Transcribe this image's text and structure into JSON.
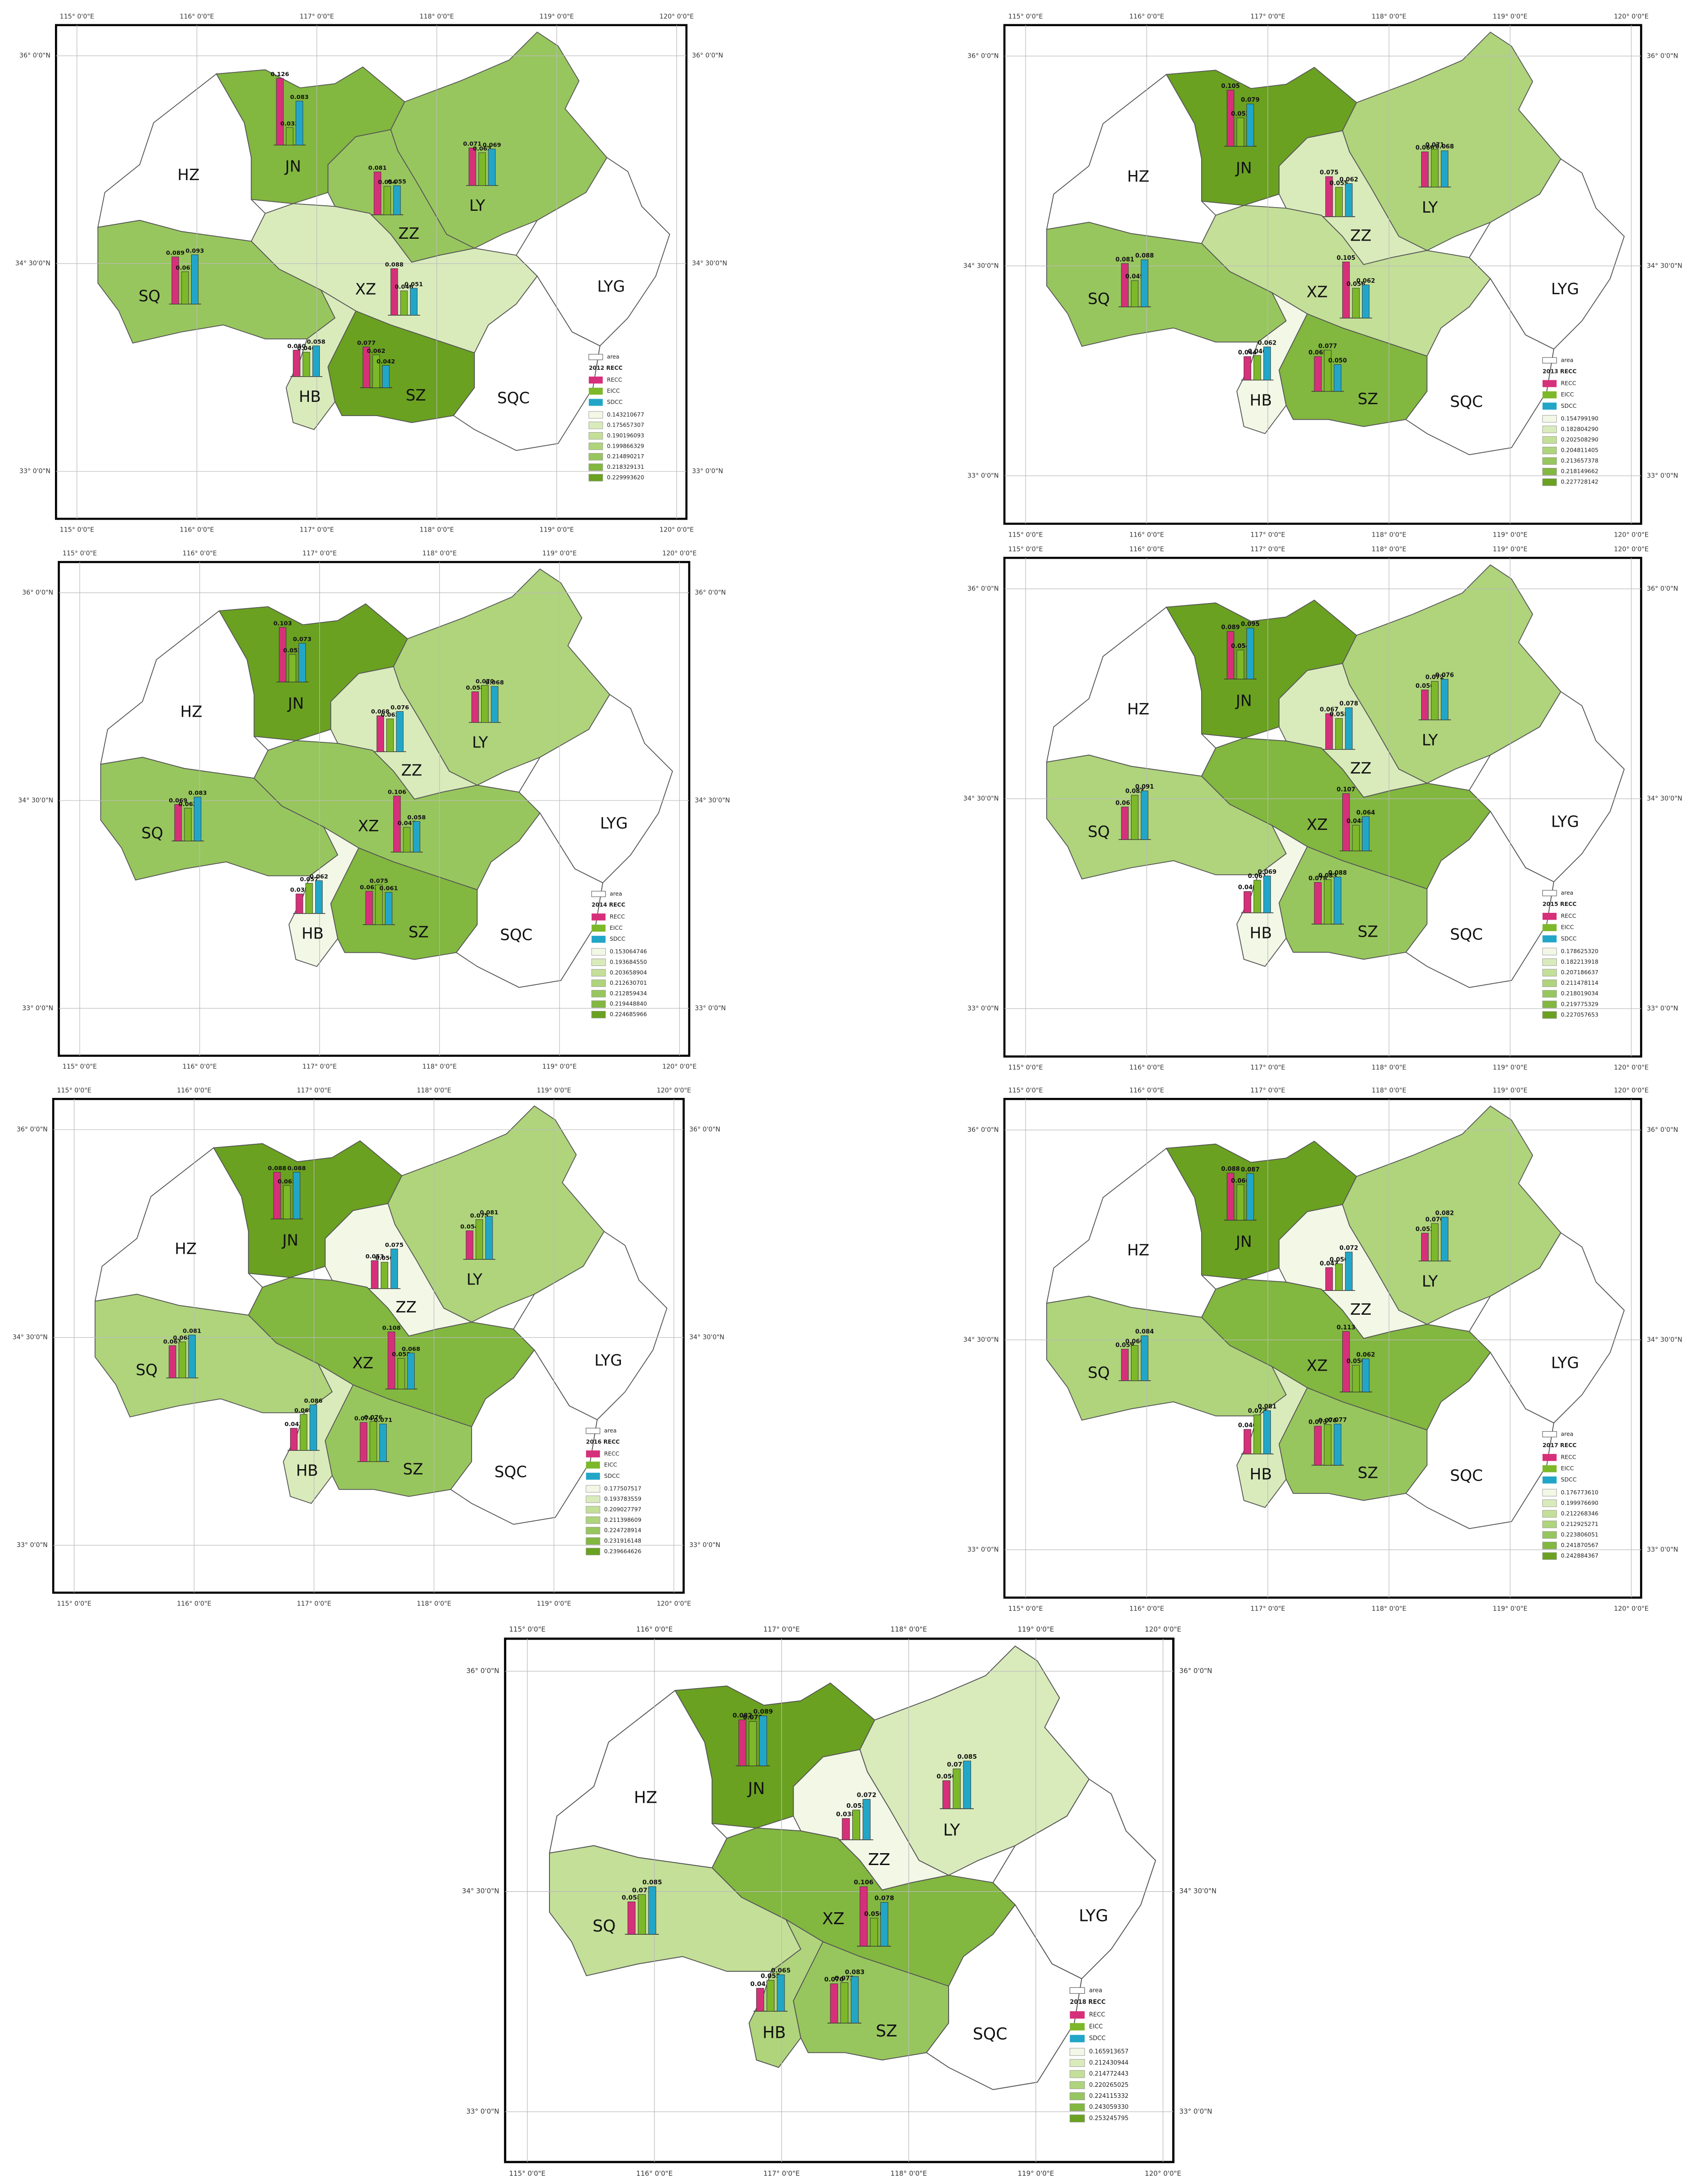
{
  "lon_labels": [
    "115° 0'0\"E",
    "116° 0'0\"E",
    "117° 0'0\"E",
    "118° 0'0\"E",
    "119° 0'0\"E",
    "120° 0'0\"E"
  ],
  "lat_labels": [
    "36° 0'0\"N",
    "34° 30'0\"N",
    "33° 0'0\"N"
  ],
  "legend_area": "area",
  "series": [
    {
      "name": "RECC",
      "color": "#d6307a"
    },
    {
      "name": "EICC",
      "color": "#7cb829"
    },
    {
      "name": "SDCC",
      "color": "#22a6c8"
    }
  ],
  "class_colors": [
    "#f2f7e6",
    "#d9ebbb",
    "#c4df98",
    "#afd47c",
    "#98c65e",
    "#82b740",
    "#6aa121"
  ],
  "maps": [
    {
      "legend_title": "2012 RECC",
      "classes": [
        "0.143210677",
        "0.175657307",
        "0.190196093",
        "0.199866329",
        "0.214890217",
        "0.218329131",
        "0.229993620"
      ],
      "cities": [
        {
          "name": "HZ",
          "fill": "#ffffff"
        },
        {
          "name": "JN",
          "fill": "#82b740",
          "values": [
            0.126,
            0.033,
            0.083
          ],
          "value_labels": [
            "0.126",
            "0.033",
            "0.083"
          ]
        },
        {
          "name": "LY",
          "fill": "#98c65e",
          "values": [
            0.071,
            0.062,
            0.069
          ],
          "value_labels": [
            "0.071",
            "0.062",
            "0.069"
          ]
        },
        {
          "name": "ZZ",
          "fill": "#98c65e",
          "values": [
            0.081,
            0.054,
            0.055
          ],
          "value_labels": [
            "0.081",
            "0.054",
            "0.055"
          ]
        },
        {
          "name": "XZ",
          "fill": "#d9ebbb",
          "values": [
            0.088,
            0.046,
            0.051
          ],
          "value_labels": [
            "0.088",
            "0.046",
            "0.051"
          ]
        },
        {
          "name": "SQ",
          "fill": "#98c65e",
          "values": [
            0.089,
            0.061,
            0.093
          ],
          "value_labels": [
            "0.089",
            "0.061",
            "0.093"
          ]
        },
        {
          "name": "HB",
          "fill": "#d9ebbb",
          "values": [
            0.05,
            0.046,
            0.058
          ],
          "value_labels": [
            "0.050",
            "0.046",
            "0.058"
          ]
        },
        {
          "name": "SZ",
          "fill": "#6aa121",
          "values": [
            0.077,
            0.062,
            0.042
          ],
          "value_labels": [
            "0.077",
            "0.062",
            "0.042"
          ]
        },
        {
          "name": "LYG",
          "fill": "#ffffff"
        },
        {
          "name": "SQC",
          "fill": "#ffffff"
        }
      ]
    },
    {
      "legend_title": "2013 RECC",
      "classes": [
        "0.154799190",
        "0.182804290",
        "0.202508290",
        "0.204811405",
        "0.213657378",
        "0.218149662",
        "0.227728142"
      ],
      "cities": [
        {
          "name": "HZ",
          "fill": "#ffffff"
        },
        {
          "name": "JN",
          "fill": "#6aa121",
          "values": [
            0.105,
            0.053,
            0.079
          ],
          "value_labels": [
            "0.105",
            "0.053",
            "0.079"
          ]
        },
        {
          "name": "LY",
          "fill": "#afd47c",
          "values": [
            0.066,
            0.071,
            0.068
          ],
          "value_labels": [
            "0.066",
            "0.071",
            "0.068"
          ]
        },
        {
          "name": "ZZ",
          "fill": "#d9ebbb",
          "values": [
            0.075,
            0.055,
            0.062
          ],
          "value_labels": [
            "0.075",
            "0.055",
            "0.062"
          ]
        },
        {
          "name": "XZ",
          "fill": "#c4df98",
          "values": [
            0.105,
            0.056,
            0.062
          ],
          "value_labels": [
            "0.105",
            "0.056",
            "0.062"
          ]
        },
        {
          "name": "SQ",
          "fill": "#98c65e",
          "values": [
            0.081,
            0.049,
            0.088
          ],
          "value_labels": [
            "0.081",
            "0.049",
            "0.088"
          ]
        },
        {
          "name": "HB",
          "fill": "#f2f7e6",
          "values": [
            0.044,
            0.046,
            0.062
          ],
          "value_labels": [
            "0.044",
            "0.046",
            "0.062"
          ]
        },
        {
          "name": "SZ",
          "fill": "#82b740",
          "values": [
            0.065,
            0.077,
            0.05
          ],
          "value_labels": [
            "0.065",
            "0.077",
            "0.050"
          ]
        },
        {
          "name": "LYG",
          "fill": "#ffffff"
        },
        {
          "name": "SQC",
          "fill": "#ffffff"
        }
      ]
    },
    {
      "legend_title": "2014 RECC",
      "classes": [
        "0.153064746",
        "0.193684550",
        "0.203658904",
        "0.212630701",
        "0.212859434",
        "0.219448840",
        "0.224685966"
      ],
      "cities": [
        {
          "name": "HZ",
          "fill": "#ffffff"
        },
        {
          "name": "JN",
          "fill": "#6aa121",
          "values": [
            0.103,
            0.052,
            0.073
          ],
          "value_labels": [
            "0.103",
            "0.052",
            "0.073"
          ]
        },
        {
          "name": "LY",
          "fill": "#afd47c",
          "values": [
            0.058,
            0.07,
            0.068
          ],
          "value_labels": [
            "0.058",
            "0.070",
            "0.068"
          ]
        },
        {
          "name": "ZZ",
          "fill": "#d9ebbb",
          "values": [
            0.068,
            0.062,
            0.076
          ],
          "value_labels": [
            "0.068",
            "0.062",
            "0.076"
          ]
        },
        {
          "name": "XZ",
          "fill": "#98c65e",
          "values": [
            0.106,
            0.047,
            0.058
          ],
          "value_labels": [
            "0.106",
            "0.047",
            "0.058"
          ]
        },
        {
          "name": "SQ",
          "fill": "#98c65e",
          "values": [
            0.069,
            0.062,
            0.083
          ],
          "value_labels": [
            "0.069",
            "0.062",
            "0.083"
          ]
        },
        {
          "name": "HB",
          "fill": "#f2f7e6",
          "values": [
            0.037,
            0.057,
            0.062
          ],
          "value_labels": [
            "0.037",
            "0.057",
            "0.062"
          ]
        },
        {
          "name": "SZ",
          "fill": "#82b740",
          "values": [
            0.063,
            0.075,
            0.061
          ],
          "value_labels": [
            "0.063",
            "0.075",
            "0.061"
          ]
        },
        {
          "name": "LYG",
          "fill": "#ffffff"
        },
        {
          "name": "SQC",
          "fill": "#ffffff"
        }
      ]
    },
    {
      "legend_title": "2015 RECC",
      "classes": [
        "0.178625320",
        "0.182213918",
        "0.207186637",
        "0.211478114",
        "0.218019034",
        "0.219775329",
        "0.227057653"
      ],
      "cities": [
        {
          "name": "HZ",
          "fill": "#ffffff"
        },
        {
          "name": "JN",
          "fill": "#6aa121",
          "values": [
            0.089,
            0.054,
            0.095
          ],
          "value_labels": [
            "0.089",
            "0.054",
            "0.095"
          ]
        },
        {
          "name": "LY",
          "fill": "#afd47c",
          "values": [
            0.056,
            0.072,
            0.076
          ],
          "value_labels": [
            "0.056",
            "0.072",
            "0.076"
          ]
        },
        {
          "name": "ZZ",
          "fill": "#d9ebbb",
          "values": [
            0.067,
            0.058,
            0.078
          ],
          "value_labels": [
            "0.067",
            "0.058",
            "0.078"
          ]
        },
        {
          "name": "XZ",
          "fill": "#82b740",
          "values": [
            0.107,
            0.048,
            0.064
          ],
          "value_labels": [
            "0.107",
            "0.048",
            "0.064"
          ]
        },
        {
          "name": "SQ",
          "fill": "#afd47c",
          "values": [
            0.061,
            0.083,
            0.091
          ],
          "value_labels": [
            "0.061",
            "0.083",
            "0.091"
          ]
        },
        {
          "name": "HB",
          "fill": "#f2f7e6",
          "values": [
            0.04,
            0.061,
            0.069
          ],
          "value_labels": [
            "0.040",
            "0.061",
            "0.069"
          ]
        },
        {
          "name": "SZ",
          "fill": "#98c65e",
          "values": [
            0.078,
            0.083,
            0.088
          ],
          "value_labels": [
            "0.078",
            "0.083",
            "0.088"
          ]
        },
        {
          "name": "LYG",
          "fill": "#ffffff"
        },
        {
          "name": "SQC",
          "fill": "#ffffff"
        }
      ]
    },
    {
      "legend_title": "2016 RECC",
      "classes": [
        "0.177507517",
        "0.193783559",
        "0.209027797",
        "0.211398609",
        "0.224728914",
        "0.231916148",
        "0.239664626"
      ],
      "cities": [
        {
          "name": "HZ",
          "fill": "#ffffff"
        },
        {
          "name": "JN",
          "fill": "#6aa121",
          "values": [
            0.088,
            0.063,
            0.088
          ],
          "value_labels": [
            "0.088",
            "0.063",
            "0.088"
          ]
        },
        {
          "name": "LY",
          "fill": "#afd47c",
          "values": [
            0.054,
            0.075,
            0.081
          ],
          "value_labels": [
            "0.054",
            "0.075",
            "0.081"
          ]
        },
        {
          "name": "ZZ",
          "fill": "#f2f7e6",
          "values": [
            0.053,
            0.05,
            0.075
          ],
          "value_labels": [
            "0.053",
            "0.050",
            "0.075"
          ]
        },
        {
          "name": "XZ",
          "fill": "#82b740",
          "values": [
            0.108,
            0.058,
            0.068
          ],
          "value_labels": [
            "0.108",
            "0.058",
            "0.068"
          ]
        },
        {
          "name": "SQ",
          "fill": "#afd47c",
          "values": [
            0.061,
            0.068,
            0.081
          ],
          "value_labels": [
            "0.061",
            "0.068",
            "0.081"
          ]
        },
        {
          "name": "HB",
          "fill": "#d9ebbb",
          "values": [
            0.042,
            0.068,
            0.086
          ],
          "value_labels": [
            "0.042",
            "0.068",
            "0.086"
          ]
        },
        {
          "name": "SZ",
          "fill": "#98c65e",
          "values": [
            0.074,
            0.076,
            0.071
          ],
          "value_labels": [
            "0.074",
            "0.076",
            "0.071"
          ]
        },
        {
          "name": "LYG",
          "fill": "#ffffff"
        },
        {
          "name": "SQC",
          "fill": "#ffffff"
        }
      ]
    },
    {
      "legend_title": "2017 RECC",
      "classes": [
        "0.176773610",
        "0.199976690",
        "0.212268346",
        "0.212925271",
        "0.223806051",
        "0.241870567",
        "0.242884367"
      ],
      "cities": [
        {
          "name": "HZ",
          "fill": "#ffffff"
        },
        {
          "name": "JN",
          "fill": "#6aa121",
          "values": [
            0.088,
            0.066,
            0.087
          ],
          "value_labels": [
            "0.088",
            "0.066",
            "0.087"
          ]
        },
        {
          "name": "LY",
          "fill": "#afd47c",
          "values": [
            0.052,
            0.07,
            0.082
          ],
          "value_labels": [
            "0.052",
            "0.070",
            "0.082"
          ]
        },
        {
          "name": "ZZ",
          "fill": "#f2f7e6",
          "values": [
            0.043,
            0.05,
            0.072
          ],
          "value_labels": [
            "0.043",
            "0.050",
            "0.072"
          ]
        },
        {
          "name": "XZ",
          "fill": "#82b740",
          "values": [
            0.113,
            0.05,
            0.062
          ],
          "value_labels": [
            "0.113",
            "0.050",
            "0.062"
          ]
        },
        {
          "name": "SQ",
          "fill": "#afd47c",
          "values": [
            0.059,
            0.066,
            0.084
          ],
          "value_labels": [
            "0.059",
            "0.066",
            "0.084"
          ]
        },
        {
          "name": "HB",
          "fill": "#d9ebbb",
          "values": [
            0.046,
            0.073,
            0.081
          ],
          "value_labels": [
            "0.046",
            "0.073",
            "0.081"
          ]
        },
        {
          "name": "SZ",
          "fill": "#98c65e",
          "values": [
            0.073,
            0.076,
            0.077
          ],
          "value_labels": [
            "0.073",
            "0.076",
            "0.077"
          ]
        },
        {
          "name": "LYG",
          "fill": "#ffffff"
        },
        {
          "name": "SQC",
          "fill": "#ffffff"
        }
      ]
    },
    {
      "legend_title": "2018 RECC",
      "classes": [
        "0.165913657",
        "0.212430944",
        "0.214772443",
        "0.220265025",
        "0.224115332",
        "0.243059330",
        "0.253245795"
      ],
      "cities": [
        {
          "name": "HZ",
          "fill": "#ffffff"
        },
        {
          "name": "JN",
          "fill": "#6aa121",
          "values": [
            0.082,
            0.079,
            0.089
          ],
          "value_labels": [
            "0.082",
            "0.079",
            "0.089"
          ]
        },
        {
          "name": "LY",
          "fill": "#d9ebbb",
          "values": [
            0.05,
            0.071,
            0.085
          ],
          "value_labels": [
            "0.050",
            "0.071",
            "0.085"
          ]
        },
        {
          "name": "ZZ",
          "fill": "#f2f7e6",
          "values": [
            0.038,
            0.053,
            0.072
          ],
          "value_labels": [
            "0.038",
            "0.053",
            "0.072"
          ]
        },
        {
          "name": "XZ",
          "fill": "#82b740",
          "values": [
            0.106,
            0.05,
            0.078
          ],
          "value_labels": [
            "0.106",
            "0.050",
            "0.078"
          ]
        },
        {
          "name": "SQ",
          "fill": "#c4df98",
          "values": [
            0.058,
            0.071,
            0.085
          ],
          "value_labels": [
            "0.058",
            "0.071",
            "0.085"
          ]
        },
        {
          "name": "HB",
          "fill": "#afd47c",
          "values": [
            0.041,
            0.055,
            0.065
          ],
          "value_labels": [
            "0.041",
            "0.055",
            "0.065"
          ]
        },
        {
          "name": "SZ",
          "fill": "#98c65e",
          "values": [
            0.07,
            0.072,
            0.083
          ],
          "value_labels": [
            "0.070",
            "0.072",
            "0.083"
          ]
        },
        {
          "name": "LYG",
          "fill": "#ffffff"
        },
        {
          "name": "SQC",
          "fill": "#ffffff"
        }
      ]
    }
  ]
}
